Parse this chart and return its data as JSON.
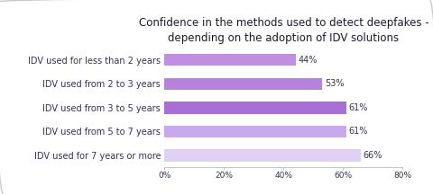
{
  "title": "Confidence in the methods used to detect deepfakes -\ndepending on the adoption of IDV solutions",
  "categories": [
    "IDV used for less than 2 years",
    "IDV used from 2 to 3 years",
    "IDV used from 3 to 5 years",
    "IDV used from 5 to 7 years",
    "IDV used for 7 years or more"
  ],
  "values": [
    44,
    53,
    61,
    61,
    66
  ],
  "bar_colors": [
    "#c090e0",
    "#b882dc",
    "#a870d4",
    "#c8aaec",
    "#e0d0f4"
  ],
  "xlabel_ticks": [
    0,
    20,
    40,
    60,
    80
  ],
  "xlabel_tick_labels": [
    "0%",
    "20%",
    "40%",
    "60%",
    "80%"
  ],
  "xlim": [
    0,
    80
  ],
  "value_color": "#3a3050",
  "label_color": "#3a3050",
  "title_color": "#1a1a2e",
  "background_color": "#ffffff",
  "border_color": "#c8c8c8",
  "title_fontsize": 8.5,
  "label_fontsize": 7.0,
  "tick_fontsize": 6.5,
  "value_fontsize": 7.0,
  "bar_height": 0.5
}
